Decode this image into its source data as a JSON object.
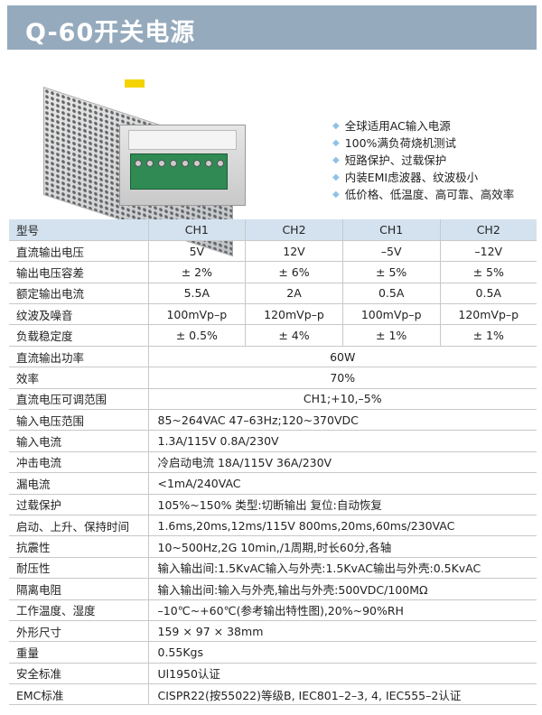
{
  "title": "Q-60开关电源",
  "features": [
    "全球适用AC输入电源",
    "100%满负荷烧机测试",
    "短路保护、过载保护",
    "内装EMI虑波器、纹波极小",
    "低价格、低温度、高可靠、高效率"
  ],
  "table": {
    "header": {
      "label": "型号",
      "cols": [
        "CH1",
        "CH2",
        "CH1",
        "CH2"
      ]
    },
    "channel_rows": [
      {
        "label": "直流输出电压",
        "cols": [
          "5V",
          "12V",
          "–5V",
          "–12V"
        ]
      },
      {
        "label": "输出电压容差",
        "cols": [
          "± 2%",
          "± 6%",
          "± 5%",
          "± 5%"
        ]
      },
      {
        "label": "额定输出电流",
        "cols": [
          "5.5A",
          "2A",
          "0.5A",
          "0.5A"
        ]
      },
      {
        "label": "纹波及噪音",
        "cols": [
          "100mVp–p",
          "120mVp–p",
          "100mVp–p",
          "120mVp–p"
        ]
      },
      {
        "label": "负载稳定度",
        "cols": [
          "± 0.5%",
          "± 4%",
          "± 1%",
          "± 1%"
        ]
      }
    ],
    "centered_rows": [
      {
        "label": "直流输出功率",
        "value": "60W"
      },
      {
        "label": "效率",
        "value": "70%"
      },
      {
        "label": "直流电压可调范围",
        "value": "CH1;+10,–5%"
      }
    ],
    "rows": [
      {
        "label": "输入电压范围",
        "value": "85~264VAC 47–63Hz;120~370VDC"
      },
      {
        "label": "输入电流",
        "value": "1.3A/115V 0.8A/230V"
      },
      {
        "label": "冲击电流",
        "value": "冷启动电流 18A/115V 36A/230V"
      },
      {
        "label": "漏电流",
        "value": "<1mA/240VAC"
      },
      {
        "label": "过载保护",
        "value": "105%~150% 类型:切断输出  复位:自动恢复"
      },
      {
        "label": "启动、上升、保持时间",
        "value": "1.6ms,20ms,12ms/115V 800ms,20ms,60ms/230VAC"
      },
      {
        "label": "抗震性",
        "value": "10~500Hz,2G 10min,/1周期,时长60分,各轴"
      },
      {
        "label": "耐压性",
        "value": "输入输出间:1.5KvAC输入与外壳:1.5KvAC输出与外壳:0.5KvAC"
      },
      {
        "label": "隔离电阻",
        "value": "输入输出间:输入与外壳,输出与外壳:500VDC/100MΩ"
      },
      {
        "label": "工作温度、湿度",
        "value": "–10℃~+60℃(参考输出特性图),20%~90%RH"
      },
      {
        "label": "外形尺寸",
        "value": "159 × 97 × 38mm"
      },
      {
        "label": "重量",
        "value": "0.55Kgs"
      },
      {
        "label": "安全标准",
        "value": "Ul1950认证"
      },
      {
        "label": "EMC标准",
        "value": "CISPR22(按55022)等级B, IEC801–2–3, 4, IEC555–2认证"
      }
    ]
  },
  "colors": {
    "title_bar": "#95aabd",
    "header_row": "#d4e2ef",
    "bullet": "#8fc2e6"
  }
}
